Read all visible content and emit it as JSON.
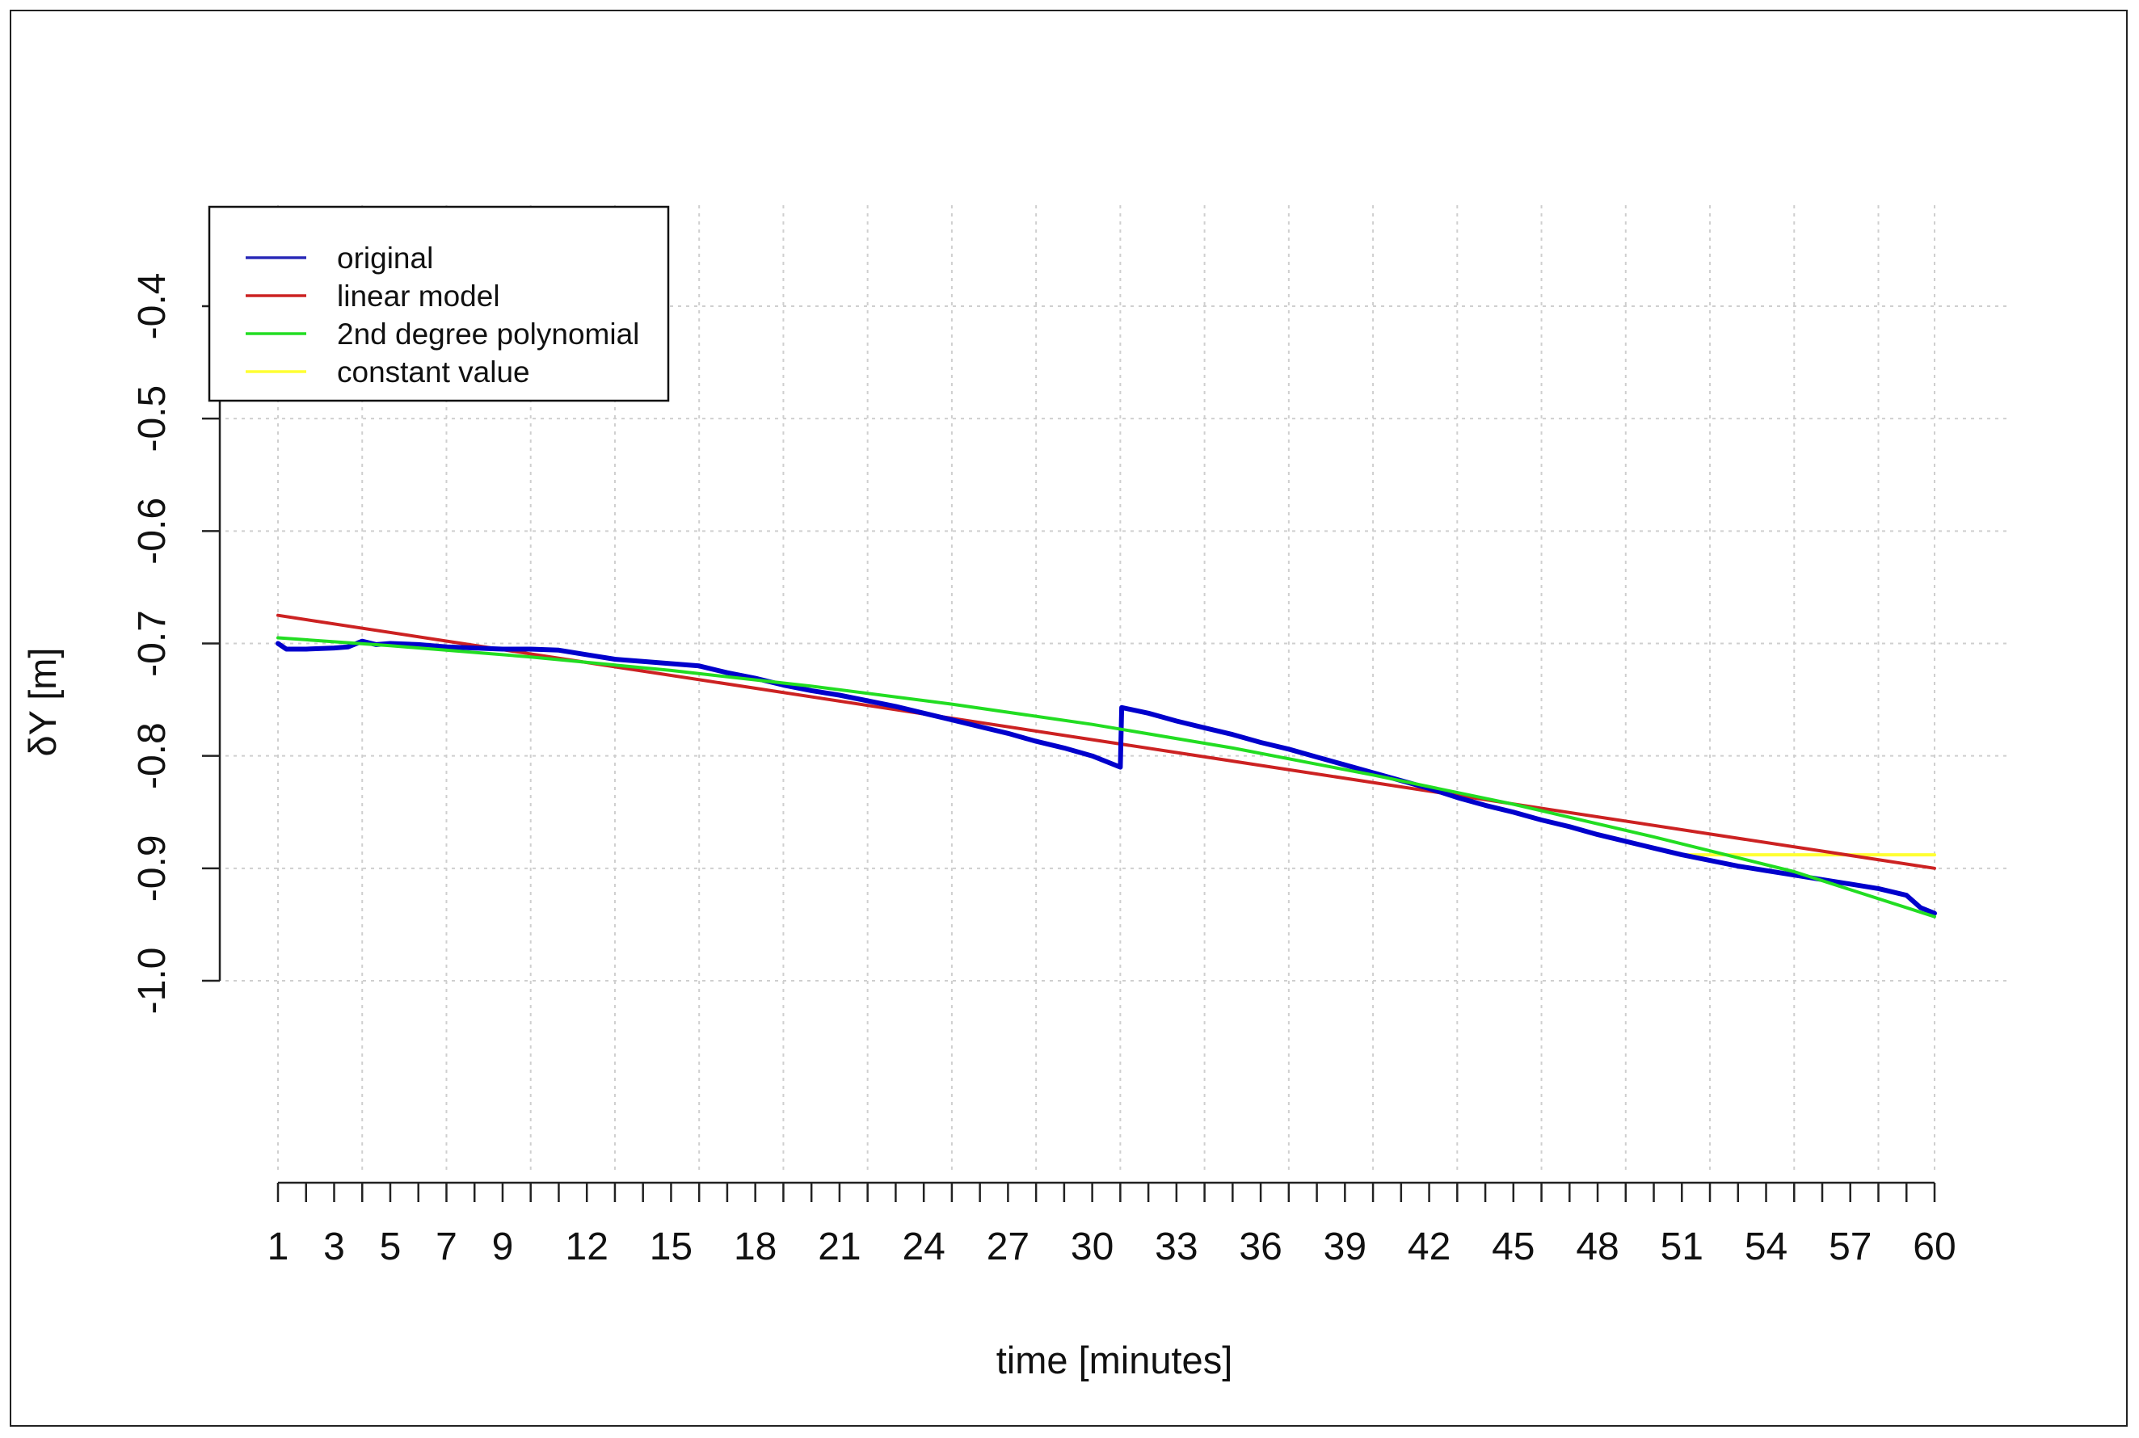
{
  "chart_data": {
    "type": "line",
    "title": "",
    "xlabel": "time [minutes]",
    "ylabel": "δY [m]",
    "xlim": [
      1,
      60
    ],
    "ylim": [
      -1.0,
      -0.4
    ],
    "grid": true,
    "legend_position": "top-left",
    "x_tick_labels": [
      "1",
      "3",
      "5",
      "7",
      "9",
      "12",
      "15",
      "18",
      "21",
      "24",
      "27",
      "30",
      "33",
      "36",
      "39",
      "42",
      "45",
      "48",
      "51",
      "54",
      "57",
      "60"
    ],
    "y_tick_labels": [
      "-0.4",
      "-0.5",
      "-0.6",
      "-0.7",
      "-0.8",
      "-0.9",
      "-1.0"
    ],
    "legend": [
      {
        "label": "original",
        "color": "#2a2ab8"
      },
      {
        "label": "linear model",
        "color": "#cc2222"
      },
      {
        "label": "2nd degree polynomial",
        "color": "#22dd22"
      },
      {
        "label": "constant value",
        "color": "#ffff33"
      }
    ],
    "series": [
      {
        "name": "original",
        "color": "#0000cc",
        "x": [
          1,
          1.3,
          2,
          3,
          3.5,
          4,
          4.5,
          5,
          6,
          7,
          8,
          9,
          10,
          11,
          12,
          13,
          14,
          15,
          16,
          17,
          18,
          19,
          20,
          21,
          22,
          23,
          24,
          25,
          26,
          27,
          28,
          29,
          30,
          31,
          31.05,
          32,
          33,
          34,
          35,
          36,
          37,
          38,
          39,
          40,
          41,
          42,
          43,
          44,
          45,
          46,
          47,
          48,
          49,
          50,
          51,
          52,
          53,
          54,
          55,
          56,
          57,
          58,
          59,
          59.5,
          60
        ],
        "y": [
          -0.7,
          -0.705,
          -0.705,
          -0.704,
          -0.703,
          -0.698,
          -0.701,
          -0.7,
          -0.701,
          -0.703,
          -0.704,
          -0.705,
          -0.705,
          -0.706,
          -0.71,
          -0.714,
          -0.716,
          -0.718,
          -0.72,
          -0.726,
          -0.731,
          -0.737,
          -0.742,
          -0.746,
          -0.751,
          -0.756,
          -0.762,
          -0.768,
          -0.774,
          -0.78,
          -0.787,
          -0.793,
          -0.8,
          -0.81,
          -0.757,
          -0.762,
          -0.769,
          -0.775,
          -0.781,
          -0.788,
          -0.794,
          -0.801,
          -0.808,
          -0.815,
          -0.822,
          -0.829,
          -0.837,
          -0.844,
          -0.85,
          -0.857,
          -0.863,
          -0.87,
          -0.876,
          -0.882,
          -0.888,
          -0.893,
          -0.898,
          -0.902,
          -0.906,
          -0.91,
          -0.914,
          -0.918,
          -0.924,
          -0.935,
          -0.94
        ]
      },
      {
        "name": "linear model",
        "color": "#cc2222",
        "x": [
          1,
          60
        ],
        "y": [
          -0.675,
          -0.9
        ]
      },
      {
        "name": "2nd degree polynomial",
        "color": "#22dd22",
        "x": [
          1,
          5,
          10,
          15,
          20,
          25,
          30,
          35,
          40,
          45,
          50,
          55,
          60
        ],
        "y": [
          -0.695,
          -0.702,
          -0.712,
          -0.724,
          -0.738,
          -0.754,
          -0.772,
          -0.793,
          -0.817,
          -0.843,
          -0.872,
          -0.903,
          -0.943
        ]
      },
      {
        "name": "constant value",
        "color": "#ffff33",
        "x": [
          51,
          60
        ],
        "y": [
          -0.888,
          -0.888
        ]
      }
    ]
  }
}
